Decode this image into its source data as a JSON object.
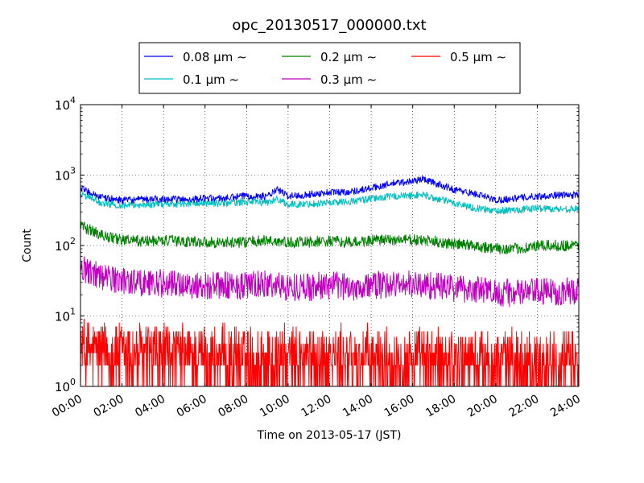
{
  "chart_data": {
    "type": "line",
    "title": "opc_20130517_000000.txt",
    "xlabel": "Time on 2013-05-17 (JST)",
    "ylabel": "Count",
    "x_ticks": [
      "00:00",
      "02:00",
      "04:00",
      "06:00",
      "08:00",
      "10:00",
      "12:00",
      "14:00",
      "16:00",
      "18:00",
      "20:00",
      "22:00",
      "24:00"
    ],
    "xlim_hours": [
      0,
      24
    ],
    "y_scale": "log",
    "ylim": [
      1,
      10000
    ],
    "y_ticks": [
      {
        "base": "10",
        "exp": "0",
        "value": 1
      },
      {
        "base": "10",
        "exp": "1",
        "value": 10
      },
      {
        "base": "10",
        "exp": "2",
        "value": 100
      },
      {
        "base": "10",
        "exp": "3",
        "value": 1000
      },
      {
        "base": "10",
        "exp": "4",
        "value": 10000
      }
    ],
    "grid": true,
    "legend": {
      "position": "above plot, centered",
      "columns": 3
    },
    "series": [
      {
        "name": "0.08 μm ∼",
        "color": "#0000ff",
        "noise": 0.05,
        "x": [
          0,
          1,
          2,
          3,
          4,
          5,
          6,
          7,
          8,
          9,
          9.5,
          10,
          11,
          12,
          13,
          14,
          15,
          16,
          16.5,
          17,
          18,
          19,
          20,
          21,
          22,
          23,
          24
        ],
        "y": [
          650,
          480,
          440,
          450,
          460,
          450,
          470,
          470,
          510,
          500,
          620,
          500,
          530,
          570,
          580,
          650,
          760,
          820,
          880,
          780,
          620,
          540,
          440,
          470,
          500,
          520,
          520
        ]
      },
      {
        "name": "0.1 μm ∼",
        "color": "#00bfbf",
        "noise": 0.05,
        "x": [
          0,
          1,
          2,
          3,
          4,
          5,
          6,
          7,
          8,
          9,
          9.5,
          10,
          11,
          12,
          13,
          14,
          15,
          16,
          16.5,
          17,
          18,
          19,
          20,
          21,
          22,
          23,
          24
        ],
        "y": [
          540,
          400,
          370,
          380,
          390,
          390,
          400,
          400,
          420,
          410,
          460,
          380,
          390,
          410,
          420,
          460,
          500,
          510,
          530,
          470,
          400,
          340,
          310,
          320,
          340,
          330,
          330
        ]
      },
      {
        "name": "0.2 μm ∼",
        "color": "#008000",
        "noise": 0.08,
        "x": [
          0,
          1,
          2,
          3,
          4,
          5,
          6,
          7,
          8,
          9,
          10,
          11,
          12,
          13,
          14,
          15,
          16,
          17,
          18,
          19,
          20,
          21,
          22,
          23,
          24
        ],
        "y": [
          190,
          140,
          120,
          115,
          118,
          115,
          112,
          110,
          112,
          118,
          110,
          112,
          115,
          110,
          118,
          120,
          120,
          115,
          105,
          100,
          90,
          90,
          98,
          100,
          100
        ]
      },
      {
        "name": "0.3 μm ∼",
        "color": "#bf00bf",
        "noise": 0.2,
        "x": [
          0,
          1,
          2,
          3,
          4,
          5,
          6,
          7,
          8,
          9,
          10,
          11,
          12,
          13,
          14,
          15,
          16,
          17,
          18,
          19,
          20,
          21,
          22,
          23,
          24
        ],
        "y": [
          50,
          36,
          32,
          30,
          29,
          28,
          27,
          27,
          27,
          28,
          26,
          26,
          27,
          26,
          27,
          28,
          28,
          27,
          25,
          24,
          22,
          21,
          22,
          22,
          23
        ]
      },
      {
        "name": "0.5 μm ∼",
        "color": "#ff0000",
        "noise": 0.45,
        "x": [
          0,
          2,
          4,
          6,
          8,
          10,
          12,
          14,
          16,
          18,
          20,
          22,
          24
        ],
        "y": [
          3,
          2.8,
          2.6,
          2.5,
          2.4,
          2.3,
          2.3,
          2.3,
          2.3,
          2.2,
          2.1,
          2.1,
          2.1
        ]
      }
    ]
  }
}
